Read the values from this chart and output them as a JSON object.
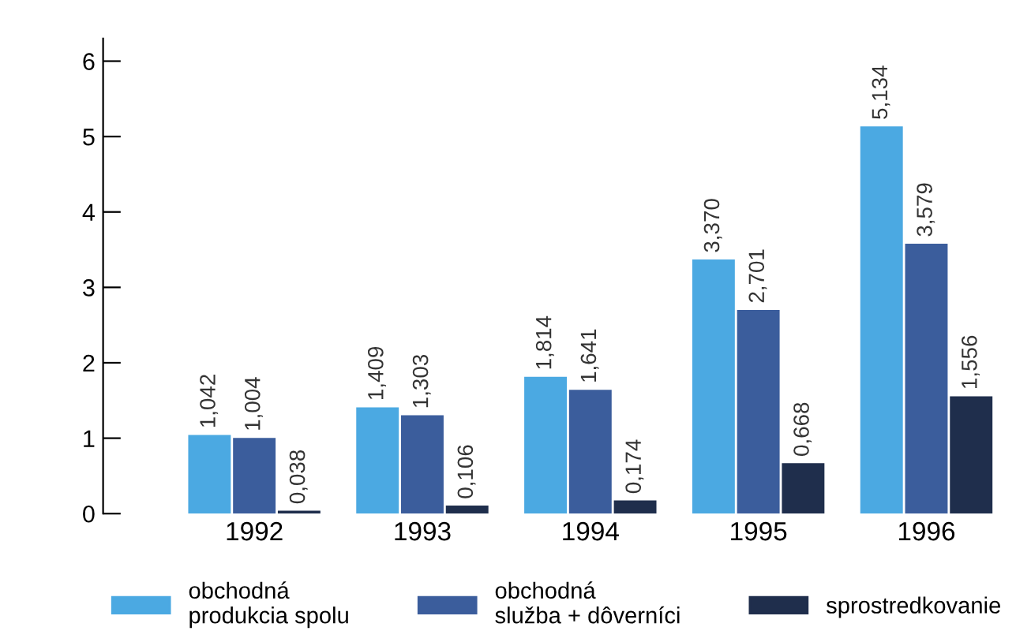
{
  "chart_data": {
    "type": "bar",
    "categories": [
      "1992",
      "1993",
      "1994",
      "1995",
      "1996"
    ],
    "series": [
      {
        "name": "obchodná\nprodukcia spolu",
        "color": "#4ba9e2",
        "values": [
          1.042,
          1.409,
          1.814,
          3.37,
          5.134
        ],
        "value_labels": [
          "1,042",
          "1,409",
          "1,814",
          "3,370",
          "5,134"
        ]
      },
      {
        "name": "obchodná\nslužba + dôverníci",
        "color": "#3b5d9c",
        "values": [
          1.004,
          1.303,
          1.641,
          2.701,
          3.579
        ],
        "value_labels": [
          "1,004",
          "1,303",
          "1,641",
          "2,701",
          "3,579"
        ]
      },
      {
        "name": "sprostredkovanie",
        "color": "#1f2e4c",
        "values": [
          0.038,
          0.106,
          0.174,
          0.668,
          1.556
        ],
        "value_labels": [
          "0,038",
          "0,106",
          "0,174",
          "0,668",
          "1,556"
        ]
      }
    ],
    "ylim": [
      0,
      6.3
    ],
    "yticks": [
      0,
      1,
      2,
      3,
      4,
      5,
      6
    ],
    "grid": false,
    "legend": "bottom"
  }
}
